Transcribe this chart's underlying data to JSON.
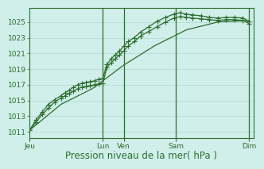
{
  "title": "",
  "xlabel": "Pression niveau de la mer( hPa )",
  "ylabel": "",
  "bg_color": "#d0eeea",
  "grid_color": "#b0d8d0",
  "line_color": "#2d6e2d",
  "marker": "+",
  "markersize": 4,
  "linewidth": 0.9,
  "yticks": [
    1011,
    1013,
    1015,
    1017,
    1019,
    1021,
    1023,
    1025
  ],
  "ylim": [
    1010.2,
    1026.8
  ],
  "day_labels": [
    "Jeu",
    "Lun",
    "Ven",
    "Sam",
    "Dim"
  ],
  "day_positions": [
    0.0,
    3.5,
    4.5,
    7.0,
    10.5
  ],
  "xlim": [
    0.0,
    10.7
  ],
  "series1_x": [
    0.0,
    0.3,
    0.6,
    0.9,
    1.2,
    1.5,
    1.7,
    1.9,
    2.1,
    2.3,
    2.5,
    2.7,
    2.9,
    3.1,
    3.3,
    3.5,
    3.7,
    3.9,
    4.1,
    4.3,
    4.5,
    4.7,
    5.0,
    5.3,
    5.7,
    6.1,
    6.5,
    6.9,
    7.2,
    7.5,
    7.8,
    8.2,
    8.6,
    9.0,
    9.4,
    9.8,
    10.2,
    10.5
  ],
  "series1_y": [
    1011.2,
    1012.2,
    1013.2,
    1014.0,
    1014.8,
    1015.3,
    1015.6,
    1015.9,
    1016.2,
    1016.5,
    1016.7,
    1016.8,
    1016.9,
    1017.0,
    1017.1,
    1017.2,
    1019.2,
    1019.8,
    1020.3,
    1020.8,
    1021.3,
    1021.9,
    1022.5,
    1023.2,
    1023.8,
    1024.4,
    1025.0,
    1025.5,
    1025.7,
    1025.6,
    1025.5,
    1025.4,
    1025.3,
    1025.2,
    1025.3,
    1025.3,
    1025.2,
    1024.8
  ],
  "series2_x": [
    0.0,
    0.3,
    0.6,
    0.9,
    1.2,
    1.5,
    1.7,
    1.9,
    2.1,
    2.3,
    2.5,
    2.7,
    2.9,
    3.1,
    3.3,
    3.5,
    3.7,
    3.9,
    4.1,
    4.3,
    4.5,
    4.7,
    5.0,
    5.3,
    5.7,
    6.1,
    6.5,
    6.9,
    7.2,
    7.5,
    7.8,
    8.2,
    8.6,
    9.0,
    9.4,
    9.8,
    10.2,
    10.5
  ],
  "series2_y": [
    1011.2,
    1012.5,
    1013.5,
    1014.5,
    1015.1,
    1015.6,
    1016.0,
    1016.3,
    1016.7,
    1017.0,
    1017.2,
    1017.3,
    1017.4,
    1017.5,
    1017.7,
    1017.8,
    1019.6,
    1020.3,
    1020.8,
    1021.3,
    1021.9,
    1022.5,
    1023.0,
    1023.7,
    1024.4,
    1025.1,
    1025.6,
    1026.0,
    1026.2,
    1026.0,
    1025.9,
    1025.8,
    1025.6,
    1025.5,
    1025.6,
    1025.6,
    1025.5,
    1025.1
  ],
  "series3_x": [
    0.0,
    1.5,
    3.0,
    4.5,
    6.0,
    7.5,
    9.0,
    10.5
  ],
  "series3_y": [
    1011.2,
    1014.5,
    1016.5,
    1019.5,
    1022.0,
    1024.0,
    1025.0,
    1025.2
  ],
  "vlines": [
    3.5,
    4.5,
    7.0,
    10.5
  ],
  "vline_color": "#2d6e2d",
  "tick_color": "#2d6e2d",
  "label_color": "#2d6e2d",
  "xlabel_fontsize": 8.5,
  "tick_fontsize": 6.5
}
